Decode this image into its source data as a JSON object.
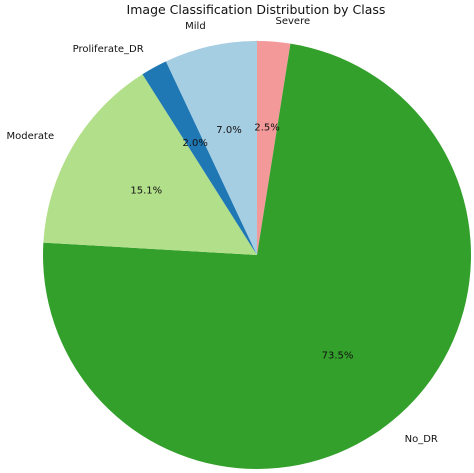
{
  "chart_data": {
    "type": "pie",
    "title": "Image Classification Distribution by Class",
    "categories": [
      "Severe",
      "No_DR",
      "Moderate",
      "Proliferate_DR",
      "Mild"
    ],
    "values": [
      2.5,
      73.5,
      15.1,
      2.0,
      7.0
    ],
    "labels_pct": [
      "2.5%",
      "73.5%",
      "15.1%",
      "2.0%",
      "7.0%"
    ],
    "colors": [
      "#f4999a",
      "#33a02c",
      "#b2df8a",
      "#1f78b4",
      "#a6cee3"
    ],
    "start_angle_deg": 90,
    "direction": "clockwise",
    "legend": "none"
  }
}
